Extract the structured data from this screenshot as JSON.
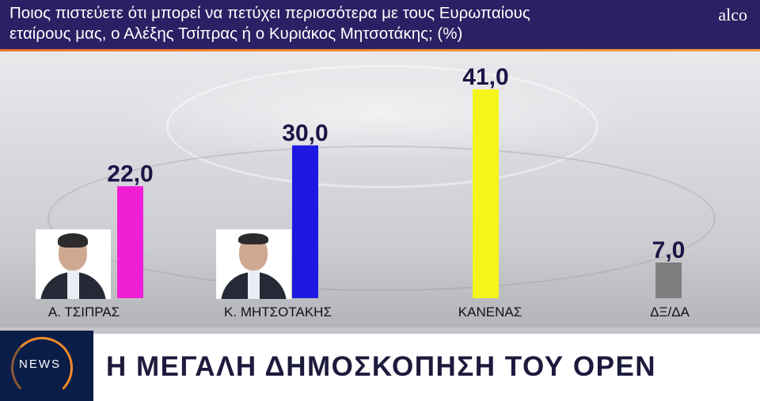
{
  "header": {
    "question_line1": "Ποιος πιστεύετε ότι μπορεί να πετύχει περισσότερα με τους Ευρωπαίους",
    "question_line2": "εταίρους μας, ο Αλέξης Τσίπρας ή ο Κυριάκος Μητσοτάκης; (%)",
    "brand": "alco"
  },
  "chart_data": {
    "type": "bar",
    "categories": [
      "Α. ΤΣΙΠΡΑΣ",
      "Κ. ΜΗΤΣΟΤΑΚΗΣ",
      "ΚΑΝΕΝΑΣ",
      "ΔΞ/ΔΑ"
    ],
    "values": [
      22.0,
      30.0,
      41.0,
      7.0
    ],
    "value_labels": [
      "22,0",
      "30,0",
      "41,0",
      "7,0"
    ],
    "colors": [
      "#f01fd6",
      "#1d19e0",
      "#f5f51c",
      "#7d7d7f"
    ],
    "category_photos": [
      "portrait-tsipras-icon",
      "portrait-mitsotakis-icon",
      null,
      null
    ],
    "ylim": [
      0,
      41
    ],
    "grid": false,
    "legend": "none"
  },
  "footer": {
    "logo_text": "NEWS",
    "title": "Η ΜΕΓΑΛΗ ΔΗΜΟΣΚΟΠΗΣΗ ΤΟΥ OPEN"
  }
}
